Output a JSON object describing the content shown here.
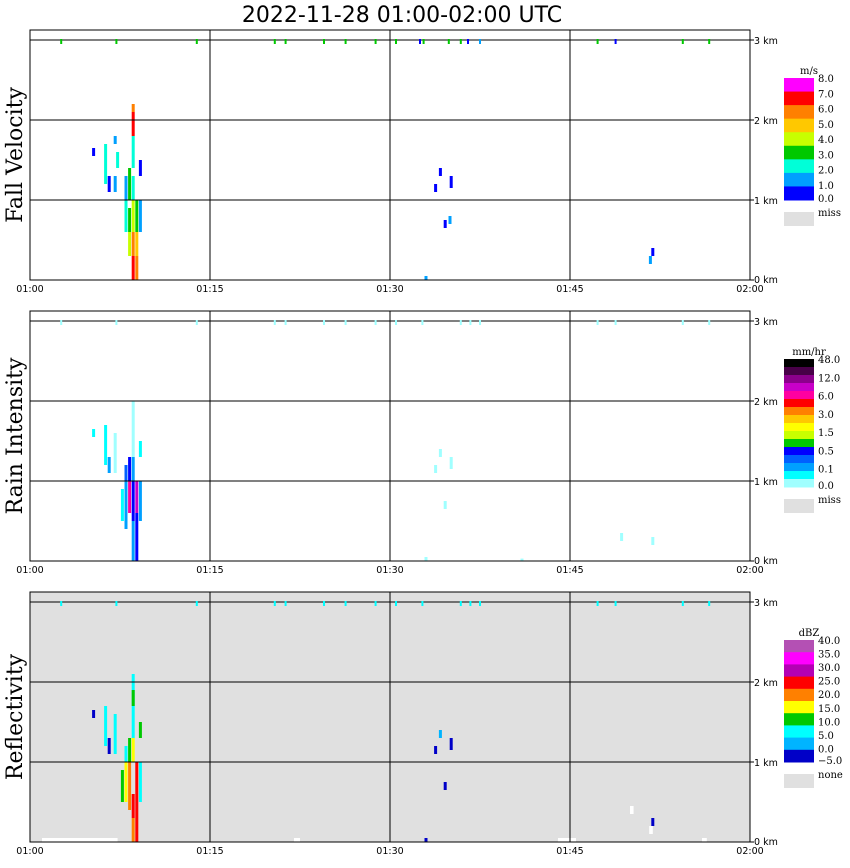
{
  "title": "2022-11-28   01:00-02:00 UTC",
  "chart_data": [
    {
      "type": "heatmap",
      "ylabel": "Fall Velocity",
      "colorbar_unit": "m/s",
      "colorbar_labels": [
        "8.0",
        "7.0",
        "6.0",
        "5.0",
        "4.0",
        "3.0",
        "2.0",
        "1.0",
        "0.0"
      ],
      "colorbar_colors": [
        "#ff00ff",
        "#ff0000",
        "#ff8000",
        "#ffc800",
        "#c8ff00",
        "#00c800",
        "#00ffd8",
        "#00a0ff",
        "#0000ff"
      ],
      "missing_label": "miss",
      "missing_color": "#e0e0e0",
      "background": "#ffffff",
      "xticks": [
        "01:00",
        "01:15",
        "01:30",
        "01:45",
        "02:00"
      ],
      "yticks": [
        "0 km",
        "1 km",
        "2 km",
        "3 km"
      ],
      "ylim": [
        0,
        3.1
      ],
      "xlim_minutes": [
        0,
        60
      ],
      "echoes": [
        {
          "t": 8.9,
          "h0": 0.0,
          "h1": 0.3,
          "color": "#ff8000"
        },
        {
          "t": 8.9,
          "h0": 0.3,
          "h1": 0.6,
          "color": "#ffc800"
        },
        {
          "t": 8.6,
          "h0": 0.0,
          "h1": 0.3,
          "color": "#ff0000"
        },
        {
          "t": 8.6,
          "h0": 0.3,
          "h1": 0.6,
          "color": "#ff8000"
        },
        {
          "t": 8.3,
          "h0": 0.3,
          "h1": 0.6,
          "color": "#c8ff00"
        },
        {
          "t": 8.3,
          "h0": 0.6,
          "h1": 0.9,
          "color": "#00c800"
        },
        {
          "t": 8.0,
          "h0": 0.6,
          "h1": 1.1,
          "color": "#00ffd8"
        },
        {
          "t": 8.6,
          "h0": 0.6,
          "h1": 1.0,
          "color": "#c8ff00"
        },
        {
          "t": 8.9,
          "h0": 0.6,
          "h1": 1.0,
          "color": "#00c800"
        },
        {
          "t": 9.2,
          "h0": 0.6,
          "h1": 1.0,
          "color": "#00a0ff"
        },
        {
          "t": 8.3,
          "h0": 1.0,
          "h1": 1.4,
          "color": "#00c800"
        },
        {
          "t": 8.0,
          "h0": 1.0,
          "h1": 1.3,
          "color": "#00a0ff"
        },
        {
          "t": 8.6,
          "h0": 1.0,
          "h1": 1.3,
          "color": "#00ffd8"
        },
        {
          "t": 9.2,
          "h0": 1.3,
          "h1": 1.5,
          "color": "#0000ff"
        },
        {
          "t": 8.6,
          "h0": 1.4,
          "h1": 1.8,
          "color": "#00ffd8"
        },
        {
          "t": 8.6,
          "h0": 1.8,
          "h1": 2.1,
          "color": "#ff0000"
        },
        {
          "t": 8.6,
          "h0": 2.1,
          "h1": 2.2,
          "color": "#ff8000"
        },
        {
          "t": 6.3,
          "h0": 1.2,
          "h1": 1.7,
          "color": "#00ffd8"
        },
        {
          "t": 6.6,
          "h0": 1.1,
          "h1": 1.3,
          "color": "#0000ff"
        },
        {
          "t": 5.3,
          "h0": 1.55,
          "h1": 1.65,
          "color": "#0000ff"
        },
        {
          "t": 7.1,
          "h0": 1.1,
          "h1": 1.3,
          "color": "#00a0ff"
        },
        {
          "t": 7.3,
          "h0": 1.4,
          "h1": 1.6,
          "color": "#00ffd8"
        },
        {
          "t": 7.1,
          "h0": 1.7,
          "h1": 1.8,
          "color": "#00a0ff"
        },
        {
          "t": 33.8,
          "h0": 1.1,
          "h1": 1.2,
          "color": "#0000ff"
        },
        {
          "t": 34.2,
          "h0": 1.3,
          "h1": 1.4,
          "color": "#0000ff"
        },
        {
          "t": 35.1,
          "h0": 1.15,
          "h1": 1.3,
          "color": "#0000ff"
        },
        {
          "t": 34.6,
          "h0": 0.65,
          "h1": 0.75,
          "color": "#0000ff"
        },
        {
          "t": 35.0,
          "h0": 0.7,
          "h1": 0.8,
          "color": "#00a0ff"
        },
        {
          "t": 33.0,
          "h0": 0.0,
          "h1": 0.05,
          "color": "#00a0ff"
        },
        {
          "t": 51.7,
          "h0": 0.2,
          "h1": 0.3,
          "color": "#00a0ff"
        },
        {
          "t": 51.9,
          "h0": 0.3,
          "h1": 0.4,
          "color": "#0000ff"
        }
      ],
      "top_band": [
        {
          "t": 2.6,
          "color": "#00c800"
        },
        {
          "t": 7.2,
          "color": "#00c800"
        },
        {
          "t": 13.9,
          "color": "#00c800"
        },
        {
          "t": 20.4,
          "color": "#00c800"
        },
        {
          "t": 21.3,
          "color": "#00c800"
        },
        {
          "t": 24.5,
          "color": "#00c800"
        },
        {
          "t": 26.3,
          "color": "#00c800"
        },
        {
          "t": 28.8,
          "color": "#00c800"
        },
        {
          "t": 30.5,
          "color": "#00c800"
        },
        {
          "t": 32.5,
          "color": "#0000ff"
        },
        {
          "t": 32.8,
          "color": "#00c800"
        },
        {
          "t": 34.9,
          "color": "#00c800"
        },
        {
          "t": 35.9,
          "color": "#00c800"
        },
        {
          "t": 36.5,
          "color": "#0000ff"
        },
        {
          "t": 37.5,
          "color": "#00a0ff"
        },
        {
          "t": 47.3,
          "color": "#00c800"
        },
        {
          "t": 48.8,
          "color": "#0000ff"
        },
        {
          "t": 54.4,
          "color": "#00c800"
        },
        {
          "t": 56.6,
          "color": "#00c800"
        }
      ]
    },
    {
      "type": "heatmap",
      "ylabel": "Rain Intensity",
      "colorbar_unit": "mm/hr",
      "colorbar_labels": [
        "48.0",
        "12.0",
        "6.0",
        "3.0",
        "1.5",
        "0.5",
        "0.1",
        "0.0"
      ],
      "colorbar_colors": [
        "#000000",
        "#480048",
        "#8c008c",
        "#c800c8",
        "#ff00a0",
        "#ff0000",
        "#ff8000",
        "#ffc800",
        "#ffff00",
        "#c8ff00",
        "#00c800",
        "#0000ff",
        "#0060ff",
        "#00a0ff",
        "#00ffff",
        "#a0ffff"
      ],
      "missing_label": "miss",
      "missing_color": "#e0e0e0",
      "background": "#ffffff",
      "xticks": [
        "01:00",
        "01:15",
        "01:30",
        "01:45",
        "02:00"
      ],
      "yticks": [
        "0 km",
        "1 km",
        "2 km",
        "3 km"
      ],
      "ylim": [
        0,
        3.1
      ],
      "xlim_minutes": [
        0,
        60
      ],
      "echoes": [
        {
          "t": 8.9,
          "h0": 0.0,
          "h1": 0.6,
          "color": "#0000ff"
        },
        {
          "t": 8.6,
          "h0": 0.0,
          "h1": 0.5,
          "color": "#00a0ff"
        },
        {
          "t": 8.6,
          "h0": 0.5,
          "h1": 1.0,
          "color": "#0000ff"
        },
        {
          "t": 8.9,
          "h0": 0.6,
          "h1": 1.0,
          "color": "#c800c8"
        },
        {
          "t": 8.3,
          "h0": 0.6,
          "h1": 1.0,
          "color": "#ff00a0"
        },
        {
          "t": 8.0,
          "h0": 0.4,
          "h1": 1.0,
          "color": "#00a0ff"
        },
        {
          "t": 9.2,
          "h0": 0.5,
          "h1": 1.0,
          "color": "#00a0ff"
        },
        {
          "t": 7.7,
          "h0": 0.5,
          "h1": 0.9,
          "color": "#00ffff"
        },
        {
          "t": 8.3,
          "h0": 1.0,
          "h1": 1.3,
          "color": "#0000ff"
        },
        {
          "t": 8.0,
          "h0": 1.0,
          "h1": 1.2,
          "color": "#0060ff"
        },
        {
          "t": 8.6,
          "h0": 1.0,
          "h1": 1.3,
          "color": "#00a0ff"
        },
        {
          "t": 8.6,
          "h0": 1.3,
          "h1": 2.0,
          "color": "#a0ffff"
        },
        {
          "t": 9.2,
          "h0": 1.3,
          "h1": 1.5,
          "color": "#00ffff"
        },
        {
          "t": 6.3,
          "h0": 1.2,
          "h1": 1.7,
          "color": "#00ffff"
        },
        {
          "t": 6.6,
          "h0": 1.1,
          "h1": 1.3,
          "color": "#00a0ff"
        },
        {
          "t": 5.3,
          "h0": 1.55,
          "h1": 1.65,
          "color": "#00ffff"
        },
        {
          "t": 7.1,
          "h0": 1.1,
          "h1": 1.6,
          "color": "#a0ffff"
        },
        {
          "t": 33.8,
          "h0": 1.1,
          "h1": 1.2,
          "color": "#a0ffff"
        },
        {
          "t": 34.2,
          "h0": 1.3,
          "h1": 1.4,
          "color": "#a0ffff"
        },
        {
          "t": 35.1,
          "h0": 1.15,
          "h1": 1.3,
          "color": "#a0ffff"
        },
        {
          "t": 34.6,
          "h0": 0.65,
          "h1": 0.75,
          "color": "#a0ffff"
        },
        {
          "t": 33.0,
          "h0": 0.0,
          "h1": 0.05,
          "color": "#a0ffff"
        },
        {
          "t": 49.3,
          "h0": 0.25,
          "h1": 0.35,
          "color": "#a0ffff"
        },
        {
          "t": 51.9,
          "h0": 0.2,
          "h1": 0.3,
          "color": "#a0ffff"
        },
        {
          "t": 41.0,
          "h0": 0.0,
          "h1": 0.03,
          "color": "#a0ffff"
        }
      ],
      "top_band": [
        {
          "t": 2.6,
          "color": "#a0ffff"
        },
        {
          "t": 7.2,
          "color": "#a0ffff"
        },
        {
          "t": 13.9,
          "color": "#a0ffff"
        },
        {
          "t": 20.4,
          "color": "#a0ffff"
        },
        {
          "t": 21.3,
          "color": "#a0ffff"
        },
        {
          "t": 24.5,
          "color": "#a0ffff"
        },
        {
          "t": 26.3,
          "color": "#a0ffff"
        },
        {
          "t": 28.8,
          "color": "#a0ffff"
        },
        {
          "t": 30.5,
          "color": "#a0ffff"
        },
        {
          "t": 32.7,
          "color": "#a0ffff"
        },
        {
          "t": 35.9,
          "color": "#a0ffff"
        },
        {
          "t": 36.7,
          "color": "#a0ffff"
        },
        {
          "t": 37.5,
          "color": "#a0ffff"
        },
        {
          "t": 47.3,
          "color": "#a0ffff"
        },
        {
          "t": 48.8,
          "color": "#a0ffff"
        },
        {
          "t": 54.4,
          "color": "#a0ffff"
        },
        {
          "t": 56.6,
          "color": "#a0ffff"
        }
      ]
    },
    {
      "type": "heatmap",
      "ylabel": "Reflectivity",
      "colorbar_unit": "dBZ",
      "colorbar_labels": [
        "40.0",
        "35.0",
        "30.0",
        "25.0",
        "20.0",
        "15.0",
        "10.0",
        "5.0",
        "0.0",
        "−5.0"
      ],
      "colorbar_colors": [
        "#b450b4",
        "#ff00ff",
        "#b400b4",
        "#ff0000",
        "#ff8000",
        "#ffff00",
        "#00c800",
        "#00ffff",
        "#00b4ff",
        "#0000c8"
      ],
      "missing_label": "none",
      "missing_color": "#e0e0e0",
      "background": "#e0e0e0",
      "xticks": [
        "01:00",
        "01:15",
        "01:30",
        "01:45",
        "02:00"
      ],
      "yticks": [
        "0 km",
        "1 km",
        "2 km",
        "3 km"
      ],
      "ylim": [
        0,
        3.1
      ],
      "xlim_minutes": [
        0,
        60
      ],
      "echoes": [
        {
          "t": 8.9,
          "h0": 0.0,
          "h1": 0.4,
          "color": "#ff0000"
        },
        {
          "t": 8.6,
          "h0": 0.0,
          "h1": 0.3,
          "color": "#ff8000"
        },
        {
          "t": 8.6,
          "h0": 0.3,
          "h1": 0.6,
          "color": "#ff0000"
        },
        {
          "t": 8.9,
          "h0": 0.4,
          "h1": 1.0,
          "color": "#ff0000"
        },
        {
          "t": 8.3,
          "h0": 0.4,
          "h1": 1.0,
          "color": "#ff8000"
        },
        {
          "t": 8.0,
          "h0": 0.5,
          "h1": 1.0,
          "color": "#ffff00"
        },
        {
          "t": 7.7,
          "h0": 0.5,
          "h1": 0.9,
          "color": "#00c800"
        },
        {
          "t": 9.2,
          "h0": 0.5,
          "h1": 1.0,
          "color": "#00ffff"
        },
        {
          "t": 8.3,
          "h0": 1.0,
          "h1": 1.3,
          "color": "#00c800"
        },
        {
          "t": 8.0,
          "h0": 1.0,
          "h1": 1.2,
          "color": "#00ffff"
        },
        {
          "t": 8.6,
          "h0": 1.0,
          "h1": 1.3,
          "color": "#ffff00"
        },
        {
          "t": 8.6,
          "h0": 1.3,
          "h1": 2.1,
          "color": "#00ffff"
        },
        {
          "t": 8.6,
          "h0": 1.7,
          "h1": 1.9,
          "color": "#00c800"
        },
        {
          "t": 9.2,
          "h0": 1.3,
          "h1": 1.5,
          "color": "#00c800"
        },
        {
          "t": 6.3,
          "h0": 1.2,
          "h1": 1.7,
          "color": "#00ffff"
        },
        {
          "t": 6.6,
          "h0": 1.1,
          "h1": 1.3,
          "color": "#0000c8"
        },
        {
          "t": 5.3,
          "h0": 1.55,
          "h1": 1.65,
          "color": "#0000c8"
        },
        {
          "t": 7.1,
          "h0": 1.1,
          "h1": 1.6,
          "color": "#00ffff"
        },
        {
          "t": 33.8,
          "h0": 1.1,
          "h1": 1.2,
          "color": "#0000c8"
        },
        {
          "t": 34.2,
          "h0": 1.3,
          "h1": 1.4,
          "color": "#00b4ff"
        },
        {
          "t": 35.1,
          "h0": 1.15,
          "h1": 1.3,
          "color": "#0000c8"
        },
        {
          "t": 34.6,
          "h0": 0.65,
          "h1": 0.75,
          "color": "#0000c8"
        },
        {
          "t": 33.0,
          "h0": 0.0,
          "h1": 0.05,
          "color": "#0000c8"
        },
        {
          "t": 51.9,
          "h0": 0.2,
          "h1": 0.3,
          "color": "#0000c8"
        }
      ],
      "top_band": [
        {
          "t": 2.6,
          "color": "#00ffff"
        },
        {
          "t": 7.2,
          "color": "#00ffff"
        },
        {
          "t": 13.9,
          "color": "#00ffff"
        },
        {
          "t": 20.4,
          "color": "#00ffff"
        },
        {
          "t": 21.3,
          "color": "#00ffff"
        },
        {
          "t": 24.5,
          "color": "#00ffff"
        },
        {
          "t": 26.3,
          "color": "#00ffff"
        },
        {
          "t": 28.8,
          "color": "#00ffff"
        },
        {
          "t": 30.5,
          "color": "#00ffff"
        },
        {
          "t": 32.7,
          "color": "#00ffff"
        },
        {
          "t": 35.9,
          "color": "#00ffff"
        },
        {
          "t": 36.7,
          "color": "#00ffff"
        },
        {
          "t": 37.5,
          "color": "#00ffff"
        },
        {
          "t": 47.3,
          "color": "#00ffff"
        },
        {
          "t": 48.8,
          "color": "#00ffff"
        },
        {
          "t": 54.4,
          "color": "#00ffff"
        },
        {
          "t": 56.6,
          "color": "#00ffff"
        }
      ],
      "no_echo": [
        {
          "t0": 1.0,
          "t1": 7.3,
          "h0": 0.0,
          "h1": 0.05
        },
        {
          "t0": 22.0,
          "t1": 22.5,
          "h0": 0.0,
          "h1": 0.05
        },
        {
          "t0": 44.0,
          "t1": 45.5,
          "h0": 0.0,
          "h1": 0.05
        },
        {
          "t0": 50.0,
          "t1": 50.3,
          "h0": 0.35,
          "h1": 0.45
        },
        {
          "t0": 51.6,
          "t1": 51.9,
          "h0": 0.1,
          "h1": 0.2
        },
        {
          "t0": 56.0,
          "t1": 56.4,
          "h0": 0.0,
          "h1": 0.05
        }
      ]
    }
  ]
}
